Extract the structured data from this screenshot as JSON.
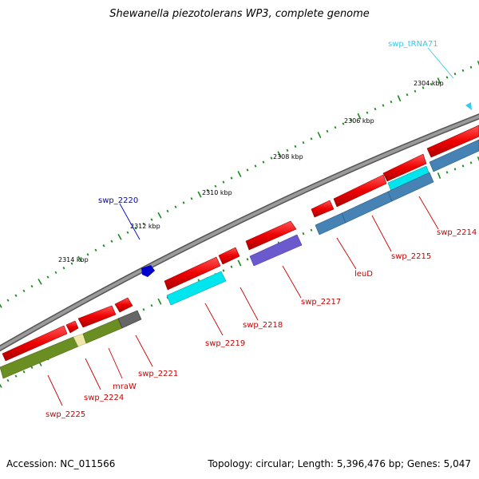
{
  "title": "Shewanella piezotolerans WP3, complete genome",
  "footer": {
    "accession": "Accession: NC_011566",
    "summary": "Topology: circular; Length: 5,396,476 bp; Genes: 5,047"
  },
  "scale_labels": [
    "2304 kbp",
    "2306 kbp",
    "2308 kbp",
    "2310 kbp",
    "2312 kbp",
    "2314 kbp"
  ],
  "gene_labels": [
    {
      "text": "swp_tRNA71",
      "color": "#33ccee"
    },
    {
      "text": "swp_2220",
      "color": "#0000cc"
    },
    {
      "text": "swp_2214",
      "color": "#cc0000"
    },
    {
      "text": "swp_2215",
      "color": "#cc0000"
    },
    {
      "text": "leuD",
      "color": "#cc0000"
    },
    {
      "text": "swp_2217",
      "color": "#cc0000"
    },
    {
      "text": "swp_2218",
      "color": "#cc0000"
    },
    {
      "text": "swp_2219",
      "color": "#cc0000"
    },
    {
      "text": "swp_2221",
      "color": "#cc0000"
    },
    {
      "text": "mraW",
      "color": "#cc0000"
    },
    {
      "text": "swp_2224",
      "color": "#cc0000"
    },
    {
      "text": "swp_2225",
      "color": "#cc0000"
    }
  ],
  "colors": {
    "backbone": "#808080",
    "cds": "#ee0000",
    "trna": "#33ccee",
    "forward_feature": "#0000cc",
    "tick": "#1a8a1a",
    "steelblue": "#4682b4",
    "cyan_feature": "#00e5ee",
    "purple_feature": "#6a5acd",
    "olive_feature": "#6b8e23",
    "pale_feature": "#eee8aa",
    "grey_feature": "#666666"
  }
}
